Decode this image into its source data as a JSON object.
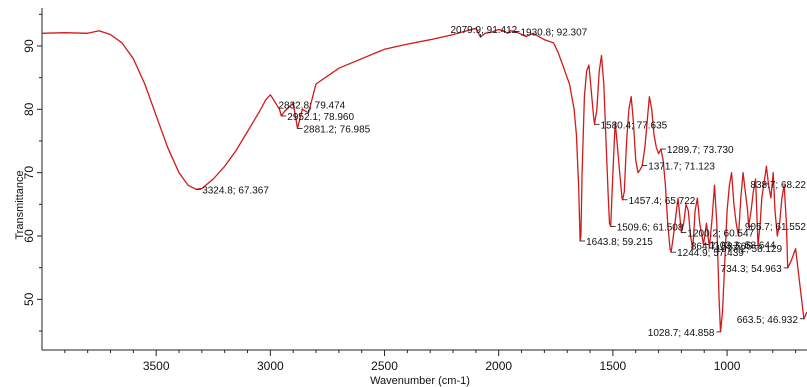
{
  "chart_data": {
    "type": "line",
    "title": "",
    "xlabel": "Wavenumber (cm-1)",
    "ylabel": "Transmittance",
    "xlim": [
      4000,
      650
    ],
    "ylim": [
      42,
      96
    ],
    "x_reversed": true,
    "grid": false,
    "x_ticks": [
      3500,
      3000,
      2500,
      2000,
      1500,
      1000
    ],
    "y_ticks": [
      50,
      60,
      70,
      80,
      90
    ],
    "colors": {
      "line": "#d11a1a"
    },
    "series": [
      {
        "x": [
          4000,
          3900,
          3800,
          3750,
          3700,
          3650,
          3600,
          3550,
          3500,
          3450,
          3400,
          3360,
          3324.8,
          3300,
          3250,
          3200,
          3150,
          3100,
          3050,
          3020,
          3000,
          2960,
          2952.1,
          2940,
          2900,
          2881.2,
          2860,
          2832.8,
          2800,
          2700,
          2600,
          2500,
          2400,
          2300,
          2200,
          2150,
          2100,
          2079.9,
          2060,
          2030,
          2000,
          1980,
          1960,
          1950,
          1930.8,
          1910,
          1880,
          1850,
          1800,
          1760,
          1740,
          1720,
          1700,
          1690,
          1680,
          1670,
          1660,
          1650,
          1643.8,
          1640,
          1635,
          1625,
          1615,
          1605,
          1595,
          1585,
          1580.4,
          1570,
          1560,
          1550,
          1540,
          1530,
          1520,
          1515,
          1509.6,
          1500,
          1490,
          1480,
          1470,
          1460,
          1457.4,
          1450,
          1440,
          1430,
          1420,
          1410,
          1400,
          1390,
          1380,
          1371.7,
          1360,
          1350,
          1340,
          1330,
          1320,
          1310,
          1300,
          1289.7,
          1280,
          1270,
          1260,
          1250,
          1244.9,
          1235,
          1225,
          1215,
          1200.2,
          1190,
          1180,
          1170,
          1160,
          1150,
          1140,
          1130,
          1120,
          1110,
          1103.3,
          1090,
          1077.2,
          1065,
          1055,
          1045,
          1035,
          1028.7,
          1020,
          1010,
          1000,
          990,
          980,
          970,
          960,
          950,
          940,
          930,
          920,
          910,
          905.7,
          895,
          885,
          875,
          864.7,
          855,
          848,
          838.7,
          828,
          818,
          808,
          798,
          790,
          780,
          770,
          760,
          750,
          740,
          734.3,
          720,
          700,
          680,
          663.5,
          650
        ],
        "values": [
          92.0,
          92.1,
          92.0,
          92.4,
          91.8,
          90.5,
          88.0,
          84.0,
          79.0,
          74.0,
          70.0,
          68.0,
          67.367,
          67.5,
          69.0,
          71.0,
          73.5,
          76.5,
          79.5,
          81.5,
          82.3,
          80.0,
          78.96,
          79.6,
          81.0,
          76.985,
          80.0,
          79.474,
          84.0,
          86.5,
          88.0,
          89.5,
          90.3,
          91.0,
          91.8,
          92.3,
          92.8,
          91.412,
          92.0,
          92.2,
          92.6,
          92.4,
          92.0,
          92.4,
          92.307,
          92.0,
          91.5,
          92.0,
          91.0,
          90.5,
          89.0,
          87.0,
          85.0,
          84.0,
          82.0,
          80.0,
          76.0,
          68.0,
          59.215,
          60.0,
          70.0,
          82.0,
          86.0,
          87.0,
          83.0,
          79.0,
          77.635,
          80.0,
          86.0,
          88.5,
          84.0,
          75.0,
          66.0,
          62.0,
          61.508,
          70.0,
          78.0,
          74.0,
          70.0,
          66.0,
          65.722,
          67.0,
          75.0,
          80.0,
          82.0,
          78.0,
          72.0,
          70.0,
          70.5,
          71.123,
          74.0,
          78.0,
          82.0,
          80.0,
          76.0,
          74.0,
          73.0,
          73.73,
          72.0,
          68.0,
          62.0,
          58.0,
          57.439,
          60.0,
          63.0,
          66.0,
          60.547,
          62.0,
          65.0,
          64.0,
          60.0,
          58.0,
          64.0,
          66.0,
          62.0,
          60.0,
          58.644,
          62.0,
          58.129,
          63.0,
          68.0,
          62.0,
          50.0,
          44.858,
          48.0,
          56.0,
          64.0,
          68.0,
          70.0,
          65.0,
          62.0,
          60.0,
          66.0,
          70.0,
          67.0,
          64.0,
          61.552,
          64.0,
          67.0,
          69.0,
          58.505,
          62.0,
          66.0,
          68.22,
          71.0,
          68.0,
          66.0,
          70.0,
          64.0,
          60.0,
          62.0,
          66.0,
          68.0,
          62.0,
          54.963,
          56.0,
          58.0,
          52.0,
          46.932,
          48.0
        ]
      }
    ],
    "annotations": [
      {
        "label": "2079.9; 91.412",
        "x": 2079.9,
        "y": 91.412,
        "side": "above"
      },
      {
        "label": "1930.8; 92.307",
        "x": 1930.8,
        "y": 92.307,
        "side": "right"
      },
      {
        "label": "2832.8; 79.474",
        "x": 2832.8,
        "y": 79.474,
        "side": "above"
      },
      {
        "label": "2952.1; 78.960",
        "x": 2952.1,
        "y": 78.96,
        "side": "right"
      },
      {
        "label": "2881.2; 76.985",
        "x": 2881.2,
        "y": 76.985,
        "side": "right"
      },
      {
        "label": "3324.8; 67.367",
        "x": 3324.8,
        "y": 67.367,
        "side": "right"
      },
      {
        "label": "1580.4; 77.635",
        "x": 1580.4,
        "y": 77.635,
        "side": "right"
      },
      {
        "label": "1289.7; 73.730",
        "x": 1289.7,
        "y": 73.73,
        "side": "right"
      },
      {
        "label": "1371.7; 71.123",
        "x": 1371.7,
        "y": 71.123,
        "side": "right"
      },
      {
        "label": "838.7; 68.22",
        "x": 838.7,
        "y": 68.22,
        "side": "right"
      },
      {
        "label": "1457.4; 65.722",
        "x": 1457.4,
        "y": 65.722,
        "side": "right"
      },
      {
        "label": "905.7; 61.552",
        "x": 905.7,
        "y": 61.552,
        "side": "right"
      },
      {
        "label": "1509.6; 61.508",
        "x": 1509.6,
        "y": 61.508,
        "side": "right"
      },
      {
        "label": "1200.2; 60.547",
        "x": 1200.2,
        "y": 60.547,
        "side": "right"
      },
      {
        "label": "1103.3; 58.644",
        "x": 1103.3,
        "y": 58.644,
        "side": "right"
      },
      {
        "label": "1643.8; 59.215",
        "x": 1643.8,
        "y": 59.215,
        "side": "right"
      },
      {
        "label": "1244.9; 57.439",
        "x": 1244.9,
        "y": 57.439,
        "side": "right"
      },
      {
        "label": "1077.2; 58.129",
        "x": 1077.2,
        "y": 58.129,
        "side": "right"
      },
      {
        "label": "864.7; 58.505",
        "x": 864.7,
        "y": 58.505,
        "side": "left"
      },
      {
        "label": "1028.7; 44.858",
        "x": 1028.7,
        "y": 44.858,
        "side": "left"
      },
      {
        "label": "663.5; 46.932",
        "x": 663.5,
        "y": 46.932,
        "side": "left"
      },
      {
        "label": "734.3; 54.963",
        "x": 734.3,
        "y": 54.963,
        "side": "left"
      }
    ]
  }
}
